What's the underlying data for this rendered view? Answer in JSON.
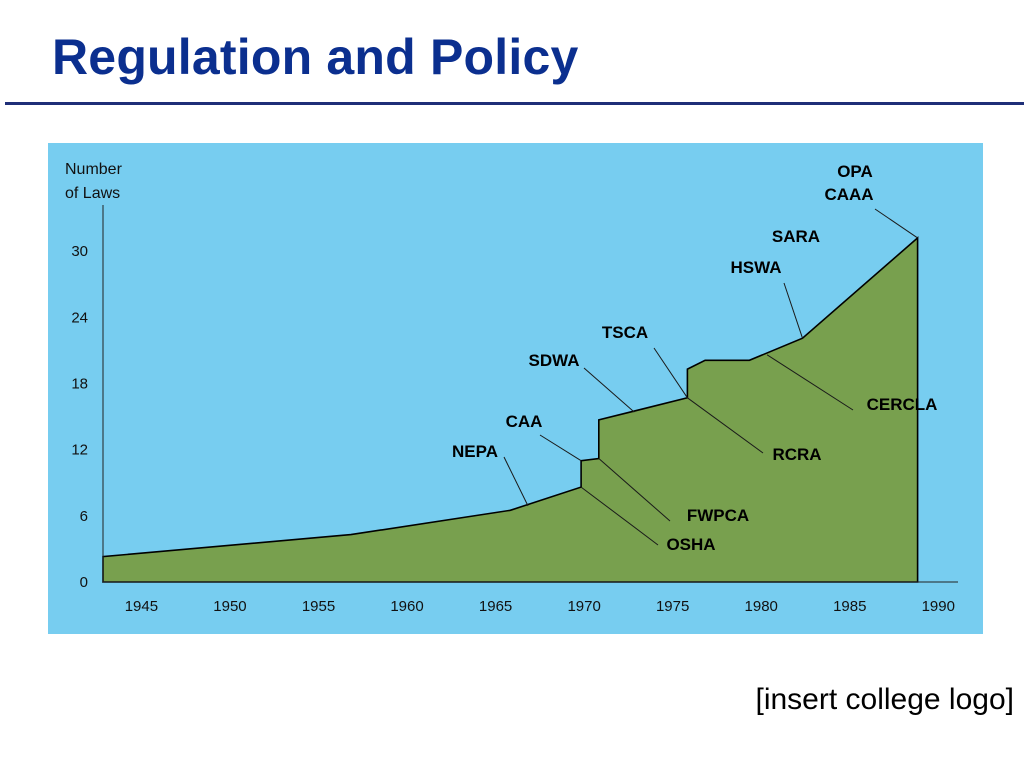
{
  "slide": {
    "title": "Regulation and Policy",
    "logo_placeholder": "[insert college logo]"
  },
  "colors": {
    "title": "#0b2f8f",
    "panel_background": "#77cdf0",
    "area_fill": "#78a04e",
    "outline": "#000000"
  },
  "chart_data": {
    "type": "area",
    "ylabel": "Number\nof Laws",
    "xlabel": "",
    "xlim": [
      1943,
      1991
    ],
    "ylim": [
      0,
      33
    ],
    "yticks": [
      0,
      6,
      12,
      18,
      24,
      30
    ],
    "xticks": [
      1945,
      1950,
      1955,
      1960,
      1965,
      1970,
      1975,
      1980,
      1985,
      1990
    ],
    "grid": false,
    "series": [
      {
        "points": [
          [
            1943.0,
            0
          ],
          [
            1943.0,
            2.3
          ],
          [
            1957.0,
            4.3
          ],
          [
            1966.0,
            6.5
          ],
          [
            1970.0,
            8.6
          ],
          [
            1970.0,
            11.0
          ],
          [
            1971.0,
            11.2
          ],
          [
            1971.0,
            14.7
          ],
          [
            1976.0,
            16.7
          ],
          [
            1976.0,
            19.3
          ],
          [
            1977.0,
            20.1
          ],
          [
            1979.5,
            20.1
          ],
          [
            1982.5,
            22.1
          ],
          [
            1989.0,
            31.2
          ],
          [
            1989.0,
            0
          ]
        ]
      }
    ],
    "annotations": [
      {
        "text": "OPA",
        "x": 1989.0,
        "y": 31.2,
        "side": "above"
      },
      {
        "text": "CAAA",
        "x": 1989.0,
        "y": 31.2,
        "side": "above"
      },
      {
        "text": "SARA",
        "x": 1982.5,
        "y": 22.1,
        "side": "above"
      },
      {
        "text": "HSWA",
        "x": 1982.5,
        "y": 22.1,
        "side": "above"
      },
      {
        "text": "TSCA",
        "x": 1976.0,
        "y": 16.7,
        "side": "above"
      },
      {
        "text": "SDWA",
        "x": 1973.0,
        "y": 15.4,
        "side": "above"
      },
      {
        "text": "CAA",
        "x": 1970.0,
        "y": 11.0,
        "side": "above"
      },
      {
        "text": "NEPA",
        "x": 1967.0,
        "y": 6.9,
        "side": "above"
      },
      {
        "text": "CERCLA",
        "x": 1980.5,
        "y": 20.6,
        "side": "below"
      },
      {
        "text": "RCRA",
        "x": 1976.0,
        "y": 16.7,
        "side": "below"
      },
      {
        "text": "FWPCA",
        "x": 1971.0,
        "y": 11.2,
        "side": "below"
      },
      {
        "text": "OSHA",
        "x": 1970.0,
        "y": 8.6,
        "side": "below"
      }
    ]
  }
}
